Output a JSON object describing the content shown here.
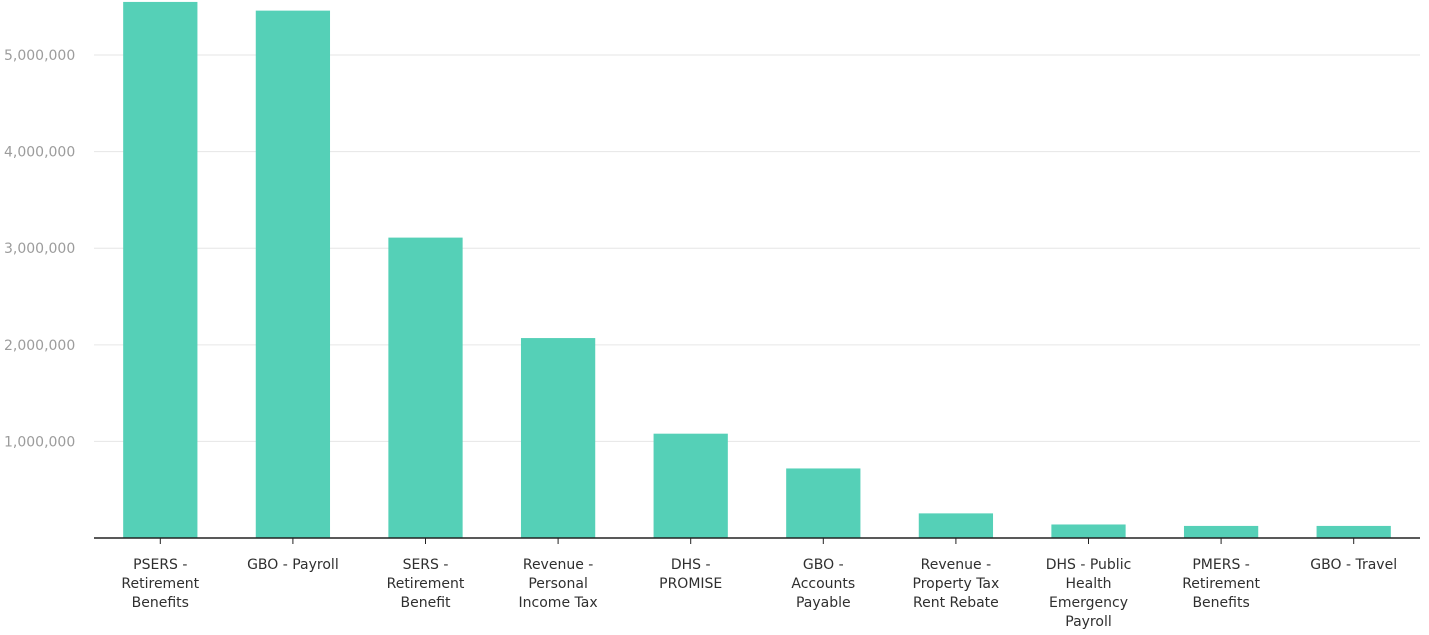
{
  "chart_data": {
    "type": "bar",
    "categories": [
      "PSERS - Retirement Benefits",
      "GBO - Payroll",
      "SERS - Retirement Benefit",
      "Revenue - Personal Income Tax",
      "DHS - PROMISE",
      "GBO - Accounts Payable",
      "Revenue - Property Tax Rent Rebate",
      "DHS - Public Health Emergency Payroll",
      "PMERS - Retirement Benefits",
      "GBO - Travel"
    ],
    "category_lines": [
      [
        "PSERS -",
        "Retirement",
        "Benefits"
      ],
      [
        "GBO - Payroll"
      ],
      [
        "SERS -",
        "Retirement",
        "Benefit"
      ],
      [
        "Revenue -",
        "Personal",
        "Income Tax"
      ],
      [
        "DHS -",
        "PROMISE"
      ],
      [
        "GBO -",
        "Accounts",
        "Payable"
      ],
      [
        "Revenue -",
        "Property Tax",
        "Rent Rebate"
      ],
      [
        "DHS - Public",
        "Health",
        "Emergency",
        "Payroll"
      ],
      [
        "PMERS -",
        "Retirement",
        "Benefits"
      ],
      [
        "GBO - Travel"
      ]
    ],
    "values": [
      5550000,
      5460000,
      3110000,
      2070000,
      1080000,
      720000,
      255000,
      140000,
      125000,
      125000
    ],
    "yticks": [
      1000000,
      2000000,
      3000000,
      4000000,
      5000000
    ],
    "ytick_labels": [
      "1,000,000",
      "2,000,000",
      "3,000,000",
      "4,000,000",
      "5,000,000"
    ],
    "ylim": [
      0,
      5570000
    ],
    "title": "",
    "xlabel": "",
    "ylabel": "",
    "grid": true,
    "legend": "none",
    "colors": {
      "bar": "#55d0b7",
      "axis": "#222222",
      "grid": "#e6e6e6",
      "ytick_text": "#9c9c9c",
      "xtick_text": "#2f2f2f"
    }
  }
}
